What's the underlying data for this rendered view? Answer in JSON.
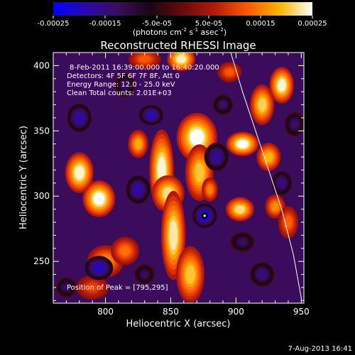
{
  "chart_data": {
    "type": "heatmap",
    "title": "Reconstructed RHESSI Image",
    "xlabel": "Heliocentric X (arcsec)",
    "ylabel": "Heliocentric Y (arcsec)",
    "xlim": [
      760,
      952
    ],
    "ylim": [
      218,
      410
    ],
    "x_ticks": [
      "800",
      "850",
      "900",
      "950"
    ],
    "x_tick_values": [
      800,
      850,
      900,
      950
    ],
    "y_ticks": [
      "250",
      "300",
      "350",
      "400"
    ],
    "y_tick_values": [
      250,
      300,
      350,
      400
    ],
    "colorbar": {
      "range": [
        -0.00025,
        0.00025
      ],
      "ticks": [
        "-0.00025",
        "-0.00015",
        "-5.0e-05",
        "5.0e-05",
        "0.00015",
        "0.00025"
      ],
      "tick_values": [
        -0.00025,
        -0.00015,
        -5e-05,
        5e-05,
        0.00015,
        0.00025
      ],
      "unit_text": "(photons cm",
      "unit_sup1": "-2",
      "unit_mid": " s",
      "unit_sup2": "-1",
      "unit_end": " asec",
      "unit_sup3": "-2",
      "unit_close": ")",
      "colormap": [
        "#0000ff",
        "#2a0ab0",
        "#3c0c5c",
        "#1a0616",
        "#6a0a0a",
        "#b81a0a",
        "#ff5a00",
        "#ffb400",
        "#ffffff"
      ]
    },
    "annotations": [
      "8-Feb-2011 16:39:00.000 to 16:40:20.000",
      "Detectors: 4F 5F 6F 7F 8F, Att 0",
      "Energy Range: 12.0 - 25.0 keV",
      "Clean     Total counts: 2.01E+03"
    ],
    "peak_label": "Position of Peak = [795,295]",
    "peak_position": [
      795,
      295
    ],
    "marker_position": [
      876,
      285
    ],
    "limb_curve": [
      [
        896,
        410
      ],
      [
        905,
        380
      ],
      [
        915,
        350
      ],
      [
        925,
        320
      ],
      [
        935,
        290
      ],
      [
        944,
        255
      ],
      [
        950,
        222
      ]
    ],
    "blobs": [
      {
        "x": 858,
        "y": 405,
        "v": 0.000235,
        "sx": 7,
        "sy": 6
      },
      {
        "x": 835,
        "y": 362,
        "v": -0.00019,
        "sx": 6,
        "sy": 5
      },
      {
        "x": 870,
        "y": 345,
        "v": 0.00025,
        "sx": 10,
        "sy": 12
      },
      {
        "x": 872,
        "y": 318,
        "v": 0.0002,
        "sx": 7,
        "sy": 14
      },
      {
        "x": 843,
        "y": 320,
        "v": 0.00024,
        "sx": 6,
        "sy": 20
      },
      {
        "x": 848,
        "y": 302,
        "v": 0.00022,
        "sx": 8,
        "sy": 9
      },
      {
        "x": 825,
        "y": 340,
        "v": 0.00018,
        "sx": 5,
        "sy": 7
      },
      {
        "x": 852,
        "y": 270,
        "v": 0.00023,
        "sx": 6,
        "sy": 22
      },
      {
        "x": 865,
        "y": 240,
        "v": 0.0002,
        "sx": 7,
        "sy": 14
      },
      {
        "x": 780,
        "y": 318,
        "v": 0.00024,
        "sx": 7,
        "sy": 10
      },
      {
        "x": 795,
        "y": 298,
        "v": 0.00025,
        "sx": 8,
        "sy": 9
      },
      {
        "x": 800,
        "y": 250,
        "v": 0.00016,
        "sx": 9,
        "sy": 8
      },
      {
        "x": 815,
        "y": 258,
        "v": 0.00014,
        "sx": 7,
        "sy": 7
      },
      {
        "x": 790,
        "y": 230,
        "v": 0.0001,
        "sx": 8,
        "sy": 6
      },
      {
        "x": 905,
        "y": 340,
        "v": 0.00025,
        "sx": 8,
        "sy": 6
      },
      {
        "x": 920,
        "y": 370,
        "v": 0.00021,
        "sx": 6,
        "sy": 10
      },
      {
        "x": 935,
        "y": 385,
        "v": 0.00024,
        "sx": 6,
        "sy": 9
      },
      {
        "x": 925,
        "y": 330,
        "v": 0.00019,
        "sx": 6,
        "sy": 7
      },
      {
        "x": 903,
        "y": 290,
        "v": 0.00022,
        "sx": 7,
        "sy": 6
      },
      {
        "x": 930,
        "y": 292,
        "v": 0.00016,
        "sx": 5,
        "sy": 6
      },
      {
        "x": 940,
        "y": 280,
        "v": 0.00013,
        "sx": 5,
        "sy": 8
      },
      {
        "x": 880,
        "y": 305,
        "v": 0.00015,
        "sx": 4,
        "sy": 6
      },
      {
        "x": 895,
        "y": 395,
        "v": 0.00012,
        "sx": 6,
        "sy": 5
      },
      {
        "x": 830,
        "y": 405,
        "v": 0.00012,
        "sx": 8,
        "sy": 5
      },
      {
        "x": 876,
        "y": 285,
        "v": -0.00022,
        "sx": 6,
        "sy": 6
      },
      {
        "x": 795,
        "y": 245,
        "v": -0.0002,
        "sx": 7,
        "sy": 6
      },
      {
        "x": 825,
        "y": 305,
        "v": -0.00018,
        "sx": 6,
        "sy": 7
      },
      {
        "x": 885,
        "y": 330,
        "v": -0.00017,
        "sx": 6,
        "sy": 7
      },
      {
        "x": 780,
        "y": 360,
        "v": -0.00018,
        "sx": 6,
        "sy": 7
      },
      {
        "x": 815,
        "y": 385,
        "v": -0.00012,
        "sx": 5,
        "sy": 6
      },
      {
        "x": 905,
        "y": 265,
        "v": -0.00012,
        "sx": 6,
        "sy": 5
      },
      {
        "x": 920,
        "y": 240,
        "v": -0.00015,
        "sx": 6,
        "sy": 6
      },
      {
        "x": 935,
        "y": 310,
        "v": -0.00015,
        "sx": 5,
        "sy": 6
      },
      {
        "x": 890,
        "y": 370,
        "v": -0.00013,
        "sx": 5,
        "sy": 5
      },
      {
        "x": 770,
        "y": 230,
        "v": -0.00012,
        "sx": 5,
        "sy": 5
      },
      {
        "x": 945,
        "y": 355,
        "v": -0.00013,
        "sx": 5,
        "sy": 6
      },
      {
        "x": 830,
        "y": 240,
        "v": -0.00012,
        "sx": 5,
        "sy": 5
      }
    ]
  },
  "footer": {
    "timestamp": "7-Aug-2013 16:41"
  }
}
